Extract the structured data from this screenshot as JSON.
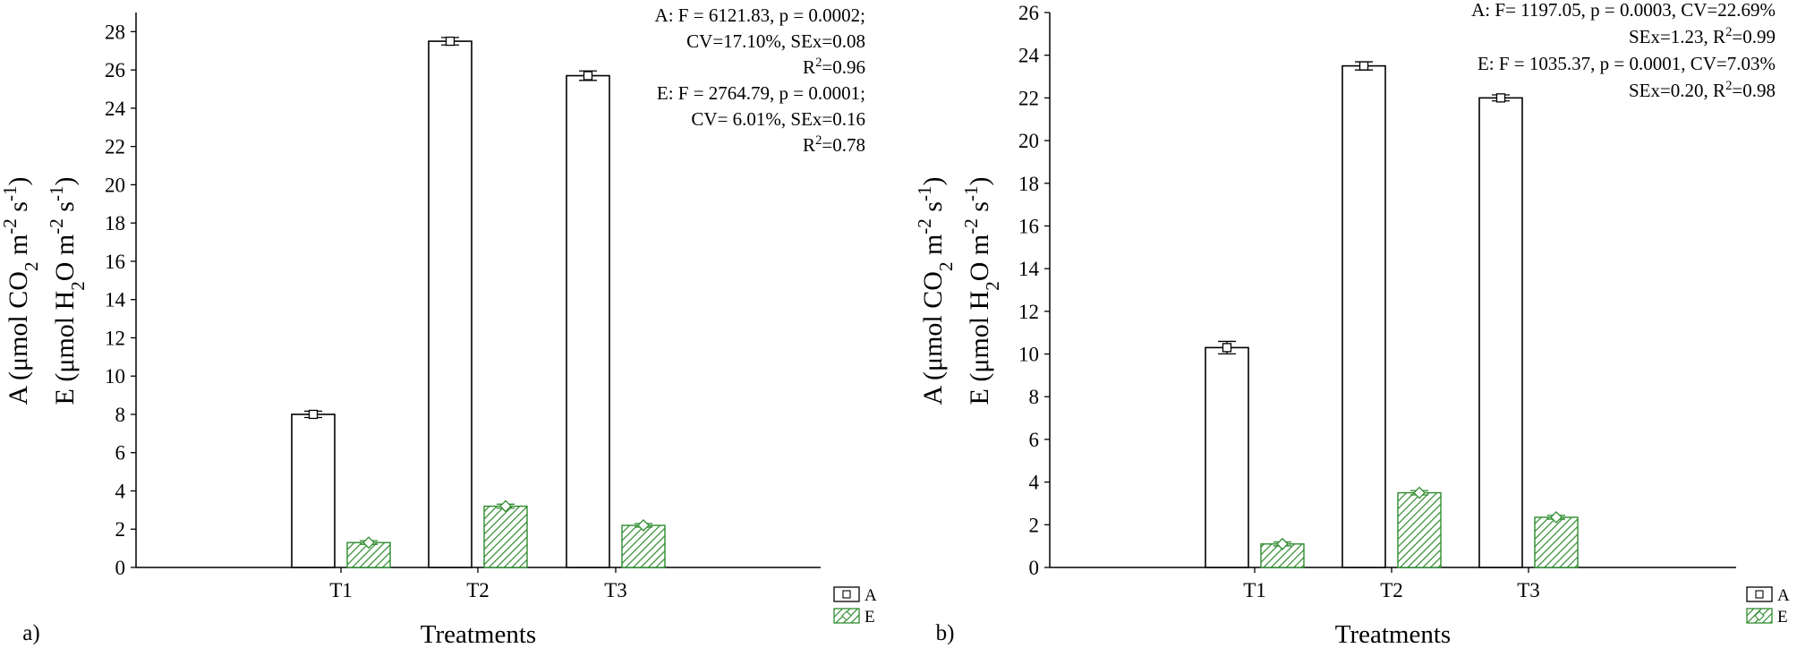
{
  "chart_data": [
    {
      "type": "bar",
      "panel_label": "a)",
      "categories": [
        "T1",
        "T2",
        "T3"
      ],
      "xlabel": "Treatments",
      "ylabel_line1": "A (μmol CO₂ m⁻² s⁻¹)",
      "ylabel_line2": "E (μmol H₂O m⁻² s⁻¹)",
      "ylim": [
        0,
        29
      ],
      "yticks": [
        0,
        2,
        4,
        6,
        8,
        10,
        12,
        14,
        16,
        18,
        20,
        22,
        24,
        26,
        28
      ],
      "series": [
        {
          "name": "A",
          "values": [
            8.0,
            27.5,
            25.7
          ],
          "errors": [
            0.12,
            0.15,
            0.2
          ],
          "color": "#ffffff",
          "stroke": "#000000"
        },
        {
          "name": "E",
          "values": [
            1.3,
            3.2,
            2.2
          ],
          "errors": [
            0.05,
            0.06,
            0.05
          ],
          "color": "#3a9a3a",
          "stroke": "#2e8b2e"
        }
      ],
      "annotations": [
        "A: F = 6121.83, p = 0.0002;",
        "CV=17.10%, SEx=0.08",
        "R²=0.96",
        "E: F = 2764.79, p = 0.0001;",
        "CV= 6.01%, SEx=0.16",
        "R²=0.78"
      ],
      "legend": [
        "A",
        "E"
      ]
    },
    {
      "type": "bar",
      "panel_label": "b)",
      "categories": [
        "T1",
        "T2",
        "T3"
      ],
      "xlabel": "Treatments",
      "ylabel_line1": "A (μmol CO₂ m⁻² s⁻¹)",
      "ylabel_line2": "E (μmol H₂O m⁻² s⁻¹)",
      "ylim": [
        0,
        26
      ],
      "yticks": [
        0,
        2,
        4,
        6,
        8,
        10,
        12,
        14,
        16,
        18,
        20,
        22,
        24,
        26
      ],
      "series": [
        {
          "name": "A",
          "values": [
            10.3,
            23.5,
            22.0
          ],
          "errors": [
            0.25,
            0.15,
            0.1
          ],
          "color": "#ffffff",
          "stroke": "#000000"
        },
        {
          "name": "E",
          "values": [
            1.1,
            3.5,
            2.35
          ],
          "errors": [
            0.05,
            0.06,
            0.05
          ],
          "color": "#3a9a3a",
          "stroke": "#2e8b2e"
        }
      ],
      "annotations": [
        "A: F= 1197.05, p = 0.0003, CV=22.69%",
        "SEx=1.23, R²=0.99",
        "E: F = 1035.37, p = 0.0001, CV=7.03%",
        "SEx=0.20, R²=0.98"
      ],
      "legend": [
        "A",
        "E"
      ]
    }
  ]
}
